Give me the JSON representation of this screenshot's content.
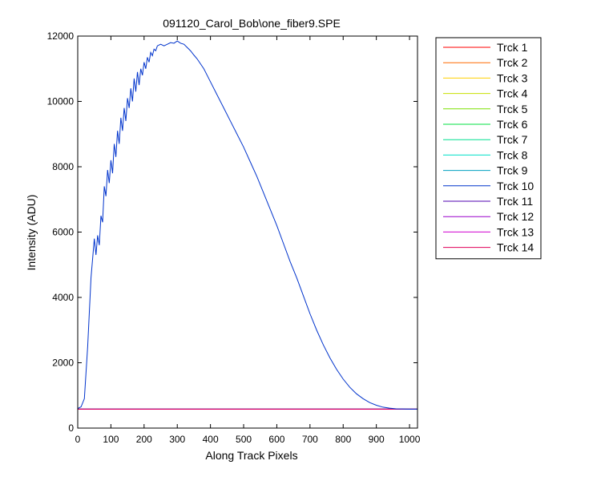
{
  "chart_data": {
    "type": "line",
    "title": "091120_Carol_Bob\\one_fiber9.SPE",
    "xlabel": "Along Track Pixels",
    "ylabel": "Intensity (ADU)",
    "xlim": [
      0,
      1024
    ],
    "ylim": [
      0,
      12000
    ],
    "xticks": [
      0,
      100,
      200,
      300,
      400,
      500,
      600,
      700,
      800,
      900,
      1000
    ],
    "yticks": [
      0,
      2000,
      4000,
      6000,
      8000,
      10000,
      12000
    ],
    "grid": false,
    "legend_position": "outside-right",
    "baseline_level": 580,
    "series": [
      {
        "name": "Trck 1",
        "color": "#ff0000",
        "x": [
          0,
          1024
        ],
        "y": [
          580,
          580
        ]
      },
      {
        "name": "Trck 2",
        "color": "#ff6a00",
        "x": [
          0,
          1024
        ],
        "y": [
          580,
          580
        ]
      },
      {
        "name": "Trck 3",
        "color": "#ffd000",
        "x": [
          0,
          1024
        ],
        "y": [
          580,
          580
        ]
      },
      {
        "name": "Trck 4",
        "color": "#c8e000",
        "x": [
          0,
          1024
        ],
        "y": [
          580,
          580
        ]
      },
      {
        "name": "Trck 5",
        "color": "#7ce000",
        "x": [
          0,
          1024
        ],
        "y": [
          580,
          580
        ]
      },
      {
        "name": "Trck 6",
        "color": "#00e040",
        "x": [
          0,
          1024
        ],
        "y": [
          580,
          580
        ]
      },
      {
        "name": "Trck 7",
        "color": "#00e090",
        "x": [
          0,
          1024
        ],
        "y": [
          580,
          580
        ]
      },
      {
        "name": "Trck 8",
        "color": "#00e0c8",
        "x": [
          0,
          1024
        ],
        "y": [
          580,
          580
        ]
      },
      {
        "name": "Trck 9",
        "color": "#00a0c0",
        "x": [
          0,
          1024
        ],
        "y": [
          580,
          580
        ]
      },
      {
        "name": "Trck 10",
        "color": "#0033cc",
        "x": [
          0,
          10,
          20,
          30,
          40,
          50,
          55,
          60,
          65,
          70,
          75,
          80,
          85,
          90,
          95,
          100,
          105,
          110,
          115,
          120,
          125,
          130,
          135,
          140,
          145,
          150,
          155,
          160,
          165,
          170,
          175,
          180,
          185,
          190,
          195,
          200,
          205,
          210,
          215,
          220,
          225,
          230,
          235,
          240,
          250,
          260,
          270,
          280,
          290,
          300,
          310,
          320,
          330,
          340,
          350,
          360,
          380,
          400,
          420,
          440,
          460,
          480,
          500,
          520,
          540,
          560,
          580,
          600,
          620,
          640,
          660,
          680,
          700,
          720,
          740,
          760,
          780,
          800,
          820,
          840,
          860,
          880,
          900,
          920,
          940,
          960,
          980,
          1000,
          1024
        ],
        "y": [
          600,
          650,
          900,
          2500,
          4600,
          5800,
          5300,
          5900,
          5600,
          6500,
          6300,
          7400,
          7100,
          7900,
          7500,
          8200,
          7800,
          8700,
          8300,
          9100,
          8700,
          9500,
          9100,
          9800,
          9400,
          10100,
          9800,
          10400,
          10000,
          10700,
          10300,
          10900,
          10500,
          11000,
          10800,
          11200,
          11000,
          11350,
          11200,
          11500,
          11400,
          11600,
          11550,
          11700,
          11750,
          11700,
          11750,
          11800,
          11780,
          11850,
          11780,
          11750,
          11650,
          11550,
          11420,
          11300,
          11000,
          10600,
          10200,
          9800,
          9400,
          9000,
          8600,
          8150,
          7700,
          7200,
          6700,
          6200,
          5650,
          5100,
          4600,
          4050,
          3500,
          3000,
          2550,
          2150,
          1800,
          1500,
          1250,
          1050,
          900,
          780,
          700,
          640,
          610,
          590,
          585,
          580,
          580
        ]
      },
      {
        "name": "Trck 11",
        "color": "#5000b0",
        "x": [
          0,
          1024
        ],
        "y": [
          580,
          580
        ]
      },
      {
        "name": "Trck 12",
        "color": "#9900cc",
        "x": [
          0,
          1024
        ],
        "y": [
          580,
          580
        ]
      },
      {
        "name": "Trck 13",
        "color": "#d000d0",
        "x": [
          0,
          1024
        ],
        "y": [
          580,
          580
        ]
      },
      {
        "name": "Trck 14",
        "color": "#e0005a",
        "x": [
          0,
          1024
        ],
        "y": [
          580,
          580
        ]
      }
    ]
  }
}
